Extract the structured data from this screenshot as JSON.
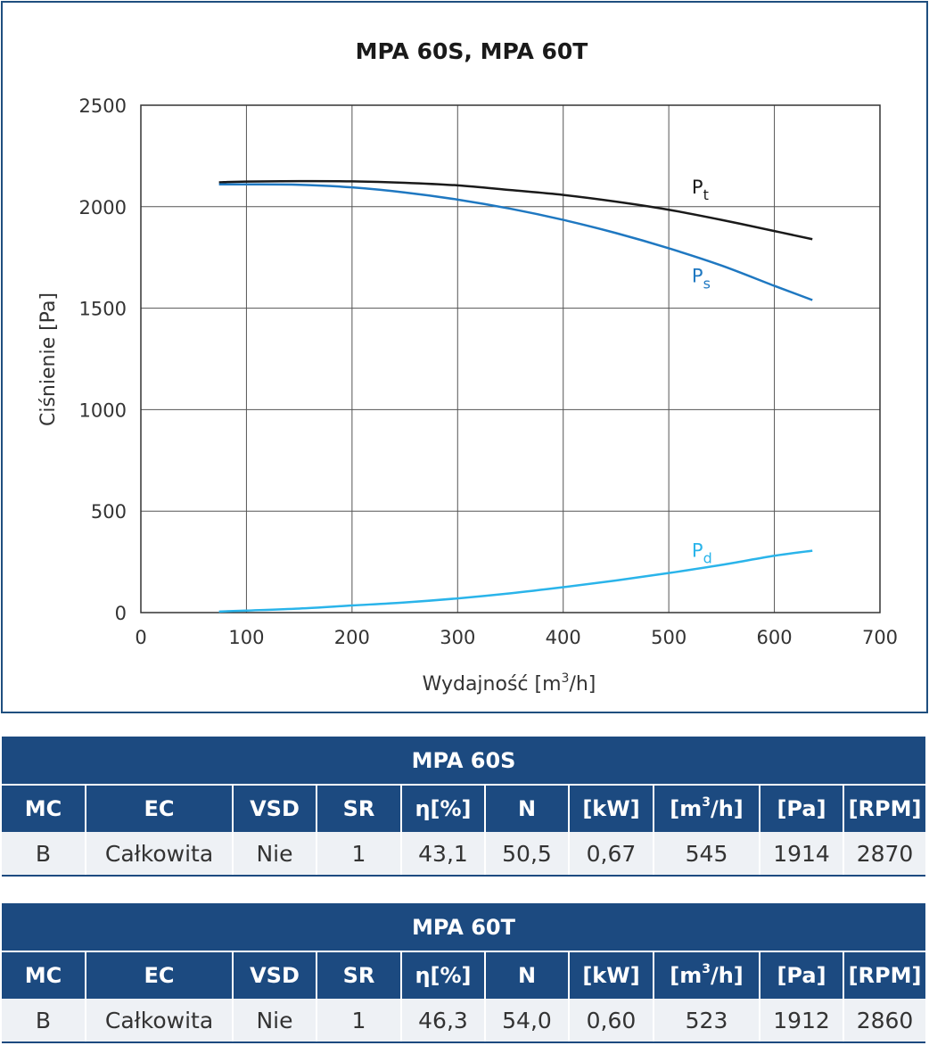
{
  "chart_data": {
    "type": "line",
    "title": "MPA 60S, MPA 60T",
    "xlabel": "Wydajność [m³/h]",
    "ylabel": "Ciśnienie [Pa]",
    "xlim": [
      0,
      700
    ],
    "ylim": [
      0,
      2500
    ],
    "xticks": [
      "0",
      "100",
      "200",
      "300",
      "400",
      "500",
      "600",
      "700"
    ],
    "yticks": [
      "0",
      "500",
      "1000",
      "1500",
      "2000",
      "2500"
    ],
    "grid": true,
    "series": [
      {
        "name": "Pt",
        "name_main": "P",
        "name_sub": "t",
        "color": "#1a1a1a",
        "x": [
          74,
          100,
          150,
          200,
          250,
          300,
          350,
          400,
          450,
          500,
          550,
          600,
          636
        ],
        "y": [
          2120,
          2124,
          2126,
          2125,
          2118,
          2105,
          2082,
          2058,
          2025,
          1985,
          1935,
          1880,
          1840
        ]
      },
      {
        "name": "Ps",
        "name_main": "P",
        "name_sub": "s",
        "color": "#1f78c1",
        "x": [
          74,
          100,
          150,
          200,
          250,
          300,
          350,
          400,
          450,
          500,
          550,
          600,
          636
        ],
        "y": [
          2110,
          2110,
          2108,
          2095,
          2070,
          2035,
          1990,
          1935,
          1870,
          1795,
          1710,
          1610,
          1540
        ]
      },
      {
        "name": "Pd",
        "name_main": "P",
        "name_sub": "d",
        "color": "#2ab4ea",
        "x": [
          74,
          100,
          150,
          200,
          250,
          300,
          350,
          400,
          450,
          500,
          550,
          600,
          636
        ],
        "y": [
          5,
          10,
          20,
          35,
          50,
          70,
          95,
          125,
          158,
          195,
          235,
          280,
          305
        ]
      }
    ]
  },
  "tables": [
    {
      "title": "MPA 60S",
      "headers": [
        "MC",
        "EC",
        "VSD",
        "SR",
        "η[%]",
        "N",
        "[kW]",
        "[m",
        "3",
        "/h]",
        "[Pa]",
        "[RPM]"
      ],
      "row": [
        "B",
        "Całkowita",
        "Nie",
        "1",
        "43,1",
        "50,5",
        "0,67",
        "545",
        "1914",
        "2870"
      ]
    },
    {
      "title": "MPA 60T",
      "headers": [
        "MC",
        "EC",
        "VSD",
        "SR",
        "η[%]",
        "N",
        "[kW]",
        "[m",
        "3",
        "/h]",
        "[Pa]",
        "[RPM]"
      ],
      "row": [
        "B",
        "Całkowita",
        "Nie",
        "1",
        "46,3",
        "54,0",
        "0,60",
        "523",
        "1912",
        "2860"
      ]
    }
  ]
}
